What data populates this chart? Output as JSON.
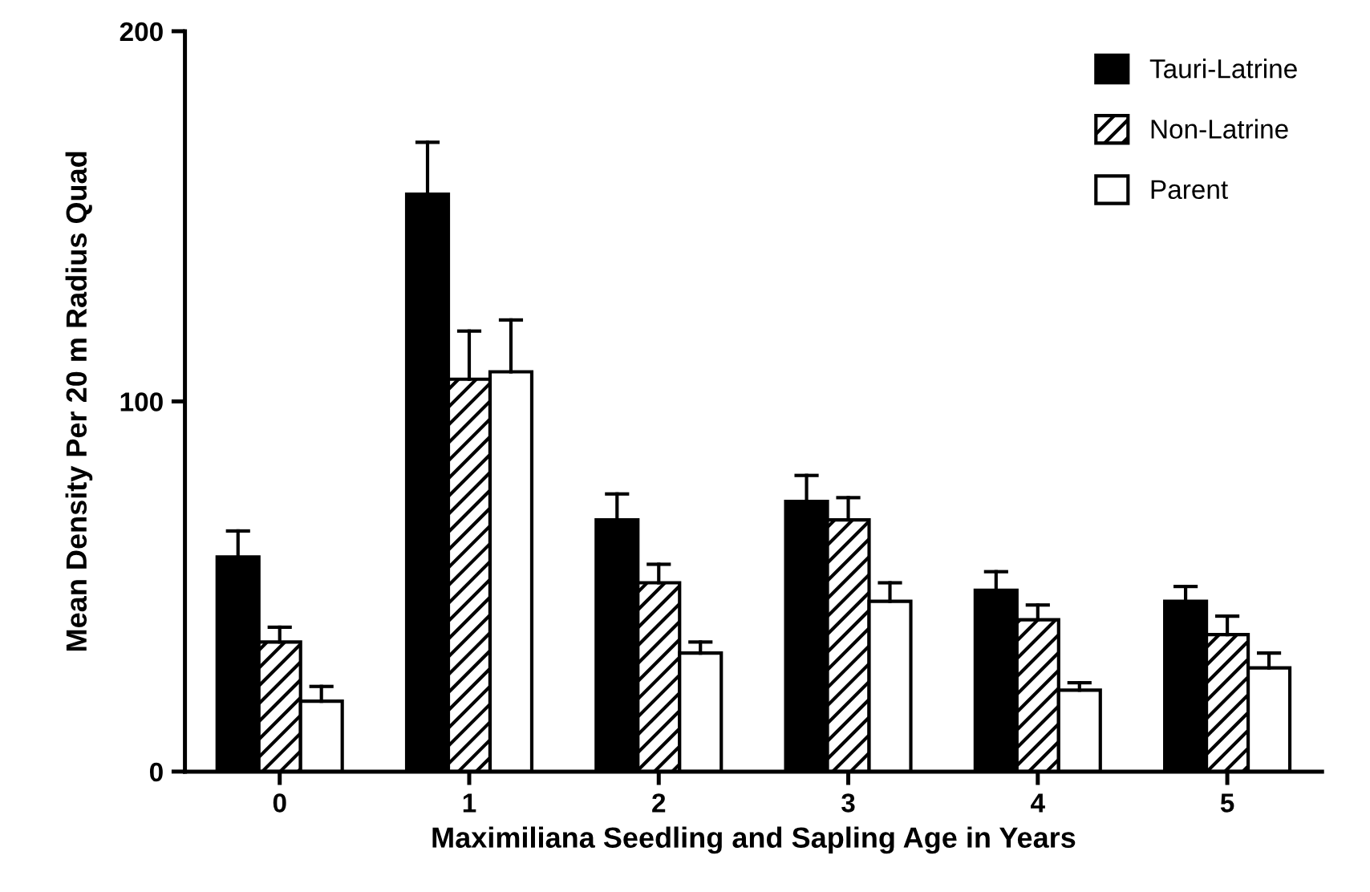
{
  "chart_data": {
    "type": "bar",
    "xlabel": "Maximiliana Seedling and Sapling Age in Years",
    "ylabel": "Mean Density Per 20 m Radius Quad",
    "categories": [
      "0",
      "1",
      "2",
      "3",
      "4",
      "5"
    ],
    "series": [
      {
        "name": "Tauri-Latrine",
        "color": "#000000",
        "values": [
          58,
          156,
          68,
          73,
          49,
          46
        ],
        "errors": [
          [
            58,
            65
          ],
          [
            156,
            170
          ],
          [
            68,
            75
          ],
          [
            73,
            80
          ],
          [
            49,
            54
          ],
          [
            46,
            50
          ]
        ]
      },
      {
        "name": "Non-Latrine",
        "color": "#000000",
        "values": [
          35,
          106,
          51,
          68,
          41,
          37
        ],
        "errors": [
          [
            35,
            39
          ],
          [
            106,
            119
          ],
          [
            51,
            56
          ],
          [
            68,
            74
          ],
          [
            41,
            45
          ],
          [
            37,
            42
          ]
        ]
      },
      {
        "name": "Parent",
        "color": "#ffffff",
        "values": [
          19,
          108,
          32,
          46,
          22,
          28
        ],
        "errors": [
          [
            19,
            23
          ],
          [
            108,
            122
          ],
          [
            32,
            35
          ],
          [
            46,
            51
          ],
          [
            22,
            24
          ],
          [
            28,
            32
          ]
        ]
      }
    ],
    "ylim": [
      0,
      200
    ],
    "yticks": [
      0,
      100,
      200
    ],
    "grid": false,
    "legend": "top right"
  }
}
